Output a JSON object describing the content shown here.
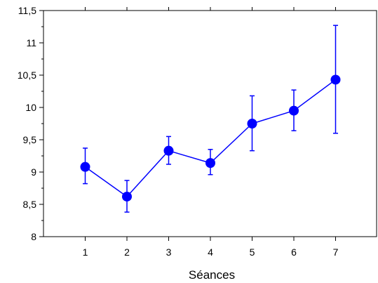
{
  "chart_data": {
    "type": "line",
    "title": "",
    "xlabel": "Séances",
    "ylabel": "",
    "xlim": [
      0,
      8
    ],
    "ylim": [
      8,
      11.5
    ],
    "x_ticks": [
      "1",
      "2",
      "3",
      "4",
      "5",
      "6",
      "7"
    ],
    "y_ticks": [
      "8",
      "8,5",
      "9",
      "9,5",
      "10",
      "10,5",
      "11",
      "11,5"
    ],
    "grid": false,
    "series": [
      {
        "color": "#0000ff",
        "x": [
          1,
          2,
          3,
          4,
          5,
          6,
          7
        ],
        "y": [
          9.08,
          8.62,
          9.33,
          9.14,
          9.75,
          9.95,
          10.43
        ],
        "error_low": [
          8.82,
          8.38,
          9.12,
          8.96,
          9.33,
          9.64,
          9.6
        ],
        "error_high": [
          9.37,
          8.87,
          9.55,
          9.35,
          10.18,
          10.27,
          11.27
        ]
      }
    ]
  }
}
